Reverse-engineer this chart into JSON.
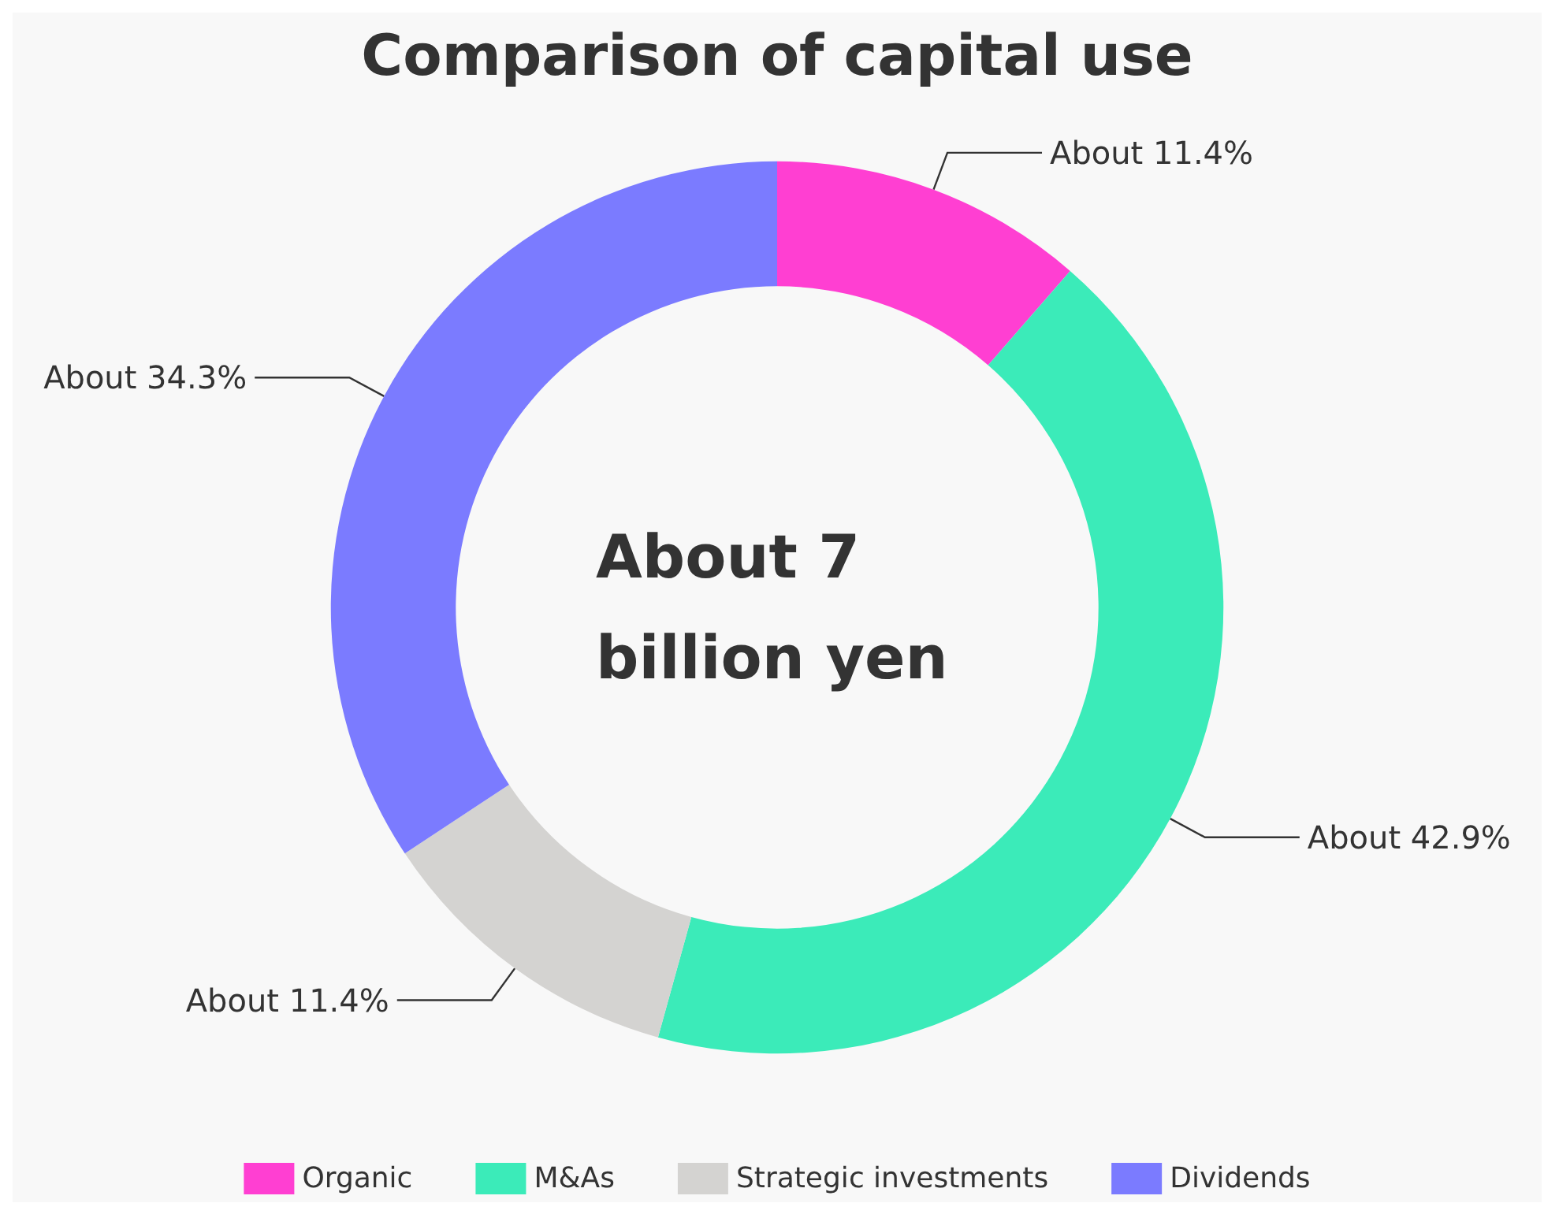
{
  "chart_data": {
    "type": "donut",
    "title": "Comparison of capital use",
    "categories": [
      "Organic",
      "M&As",
      "Strategic investments",
      "Dividends"
    ],
    "values": [
      11.4,
      42.9,
      11.4,
      34.3
    ],
    "colors": [
      "#ff3fd2",
      "#3bebb9",
      "#d4d3d1",
      "#7b7bff"
    ],
    "value_labels": [
      "About 11.4%",
      "About 42.9%",
      "About 11.4%",
      "About 34.3%"
    ],
    "annotations": [
      "About 7 billion yen"
    ],
    "legend": "bottom"
  }
}
